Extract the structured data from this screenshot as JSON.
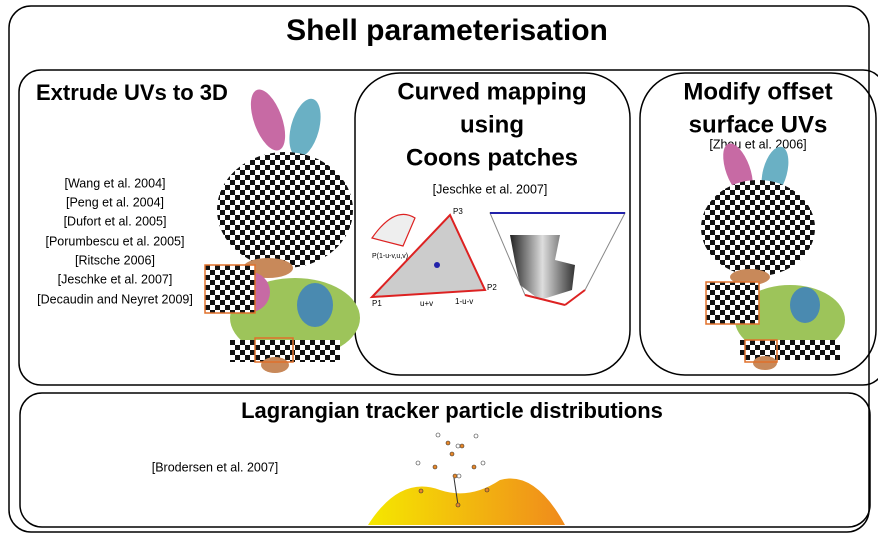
{
  "header": {
    "title": "Shell parameterisation"
  },
  "panels": [
    {
      "title": "Extrude UVs to 3D",
      "references": [
        "[Wang et al. 2004]",
        "[Peng et al. 2004]",
        "[Dufort et al. 2005]",
        "[Porumbescu et al. 2005]",
        "[Ritsche 2006]",
        "[Jeschke et al. 2007]",
        "[Decaudin and Neyret 2009]"
      ]
    },
    {
      "title_lines": [
        "Curved mapping",
        "using",
        "Coons patches"
      ],
      "references": [
        "[Jeschke et al. 2007]"
      ],
      "diagram_labels": [
        "P(1-u-v,u,v)",
        "P1",
        "P2",
        "P3",
        "u+v",
        "1-u-v"
      ]
    },
    {
      "title_lines": [
        "Modify offset",
        "surface UVs"
      ],
      "references": [
        "[Zhou et al. 2006]"
      ]
    },
    {
      "title": "Lagrangian tracker particle distributions",
      "references": [
        "[Brodersen et al. 2007]"
      ]
    }
  ]
}
